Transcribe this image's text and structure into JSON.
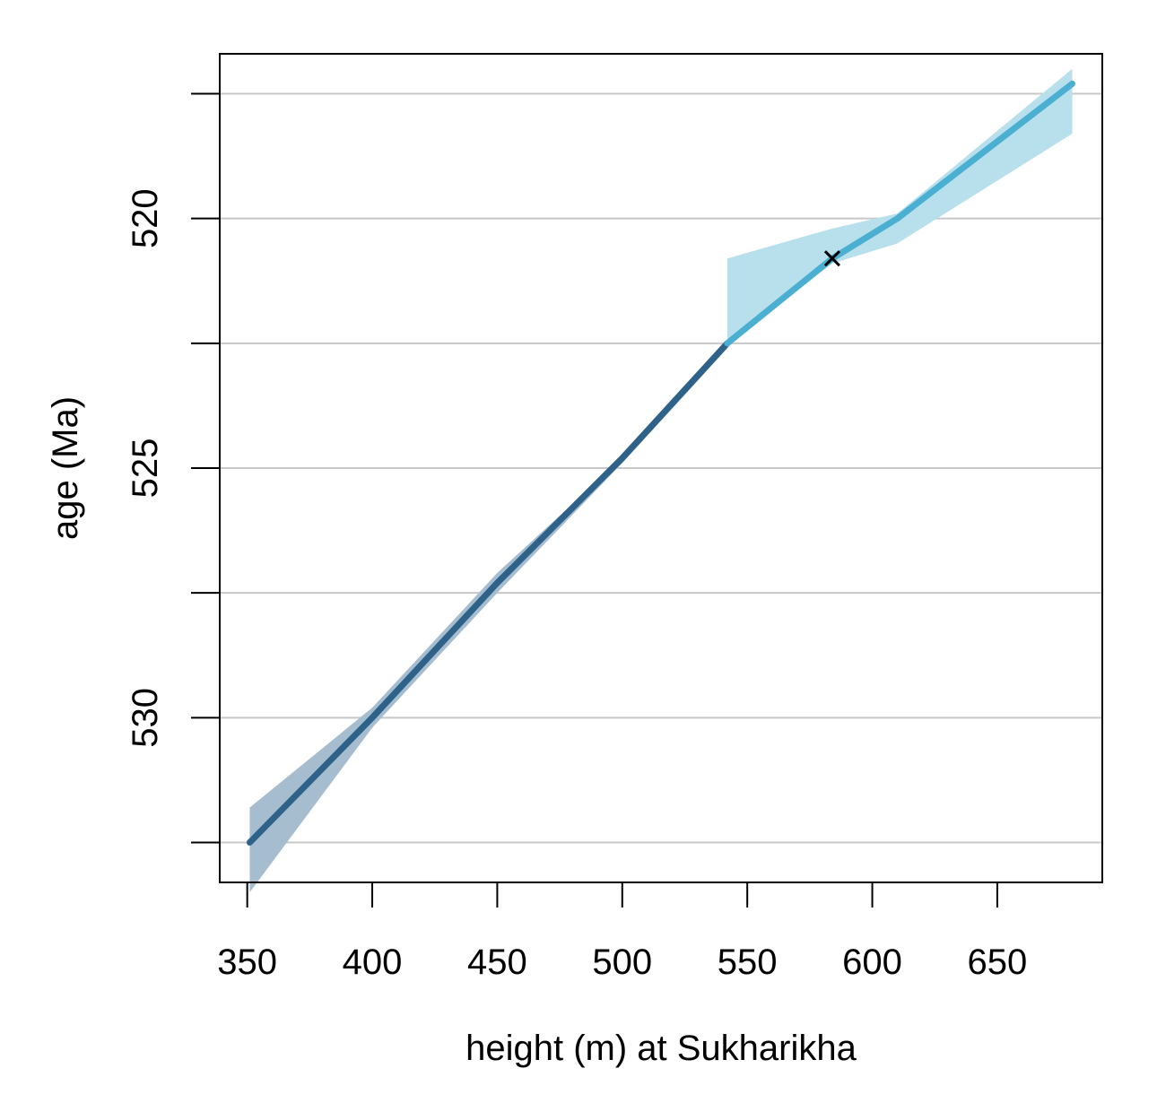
{
  "chart_data": {
    "type": "line",
    "title": "",
    "xlabel": "height (m) at Sukharikha",
    "ylabel": "age (Ma)",
    "xlim": [
      339,
      692
    ],
    "ylim": [
      533.3,
      516.7
    ],
    "y_reversed": true,
    "grid": "horizontal",
    "xticks": [
      350,
      400,
      450,
      500,
      550,
      600,
      650
    ],
    "xtick_labels": [
      "350",
      "400",
      "450",
      "500",
      "550",
      "600",
      "650"
    ],
    "yticks": [
      517.5,
      520,
      522.5,
      525,
      527.5,
      530,
      532.5
    ],
    "ytick_labels": [
      "",
      "520",
      "",
      "525",
      "",
      "530",
      ""
    ],
    "series": [
      {
        "color": "#2e6289",
        "band_color": "#a6bdd0",
        "x": [
          351,
          400,
          450,
          500,
          542
        ],
        "y": [
          532.5,
          530.0,
          527.3,
          524.8,
          522.5
        ],
        "band_upper": [
          531.8,
          529.8,
          527.1,
          524.8,
          522.5
        ],
        "band_lower": [
          533.5,
          530.2,
          527.5,
          524.9,
          522.6
        ]
      },
      {
        "color": "#4bafd1",
        "band_color": "#b7dfec",
        "x": [
          542,
          584,
          610,
          680
        ],
        "y": [
          522.5,
          520.8,
          520.0,
          517.3
        ],
        "band_upper": [
          520.8,
          520.2,
          519.9,
          517.0
        ],
        "band_lower": [
          522.5,
          520.9,
          520.5,
          518.3
        ]
      }
    ],
    "markers": [
      {
        "symbol": "x",
        "x": 584,
        "y": 520.8,
        "color": "#000000"
      }
    ]
  }
}
